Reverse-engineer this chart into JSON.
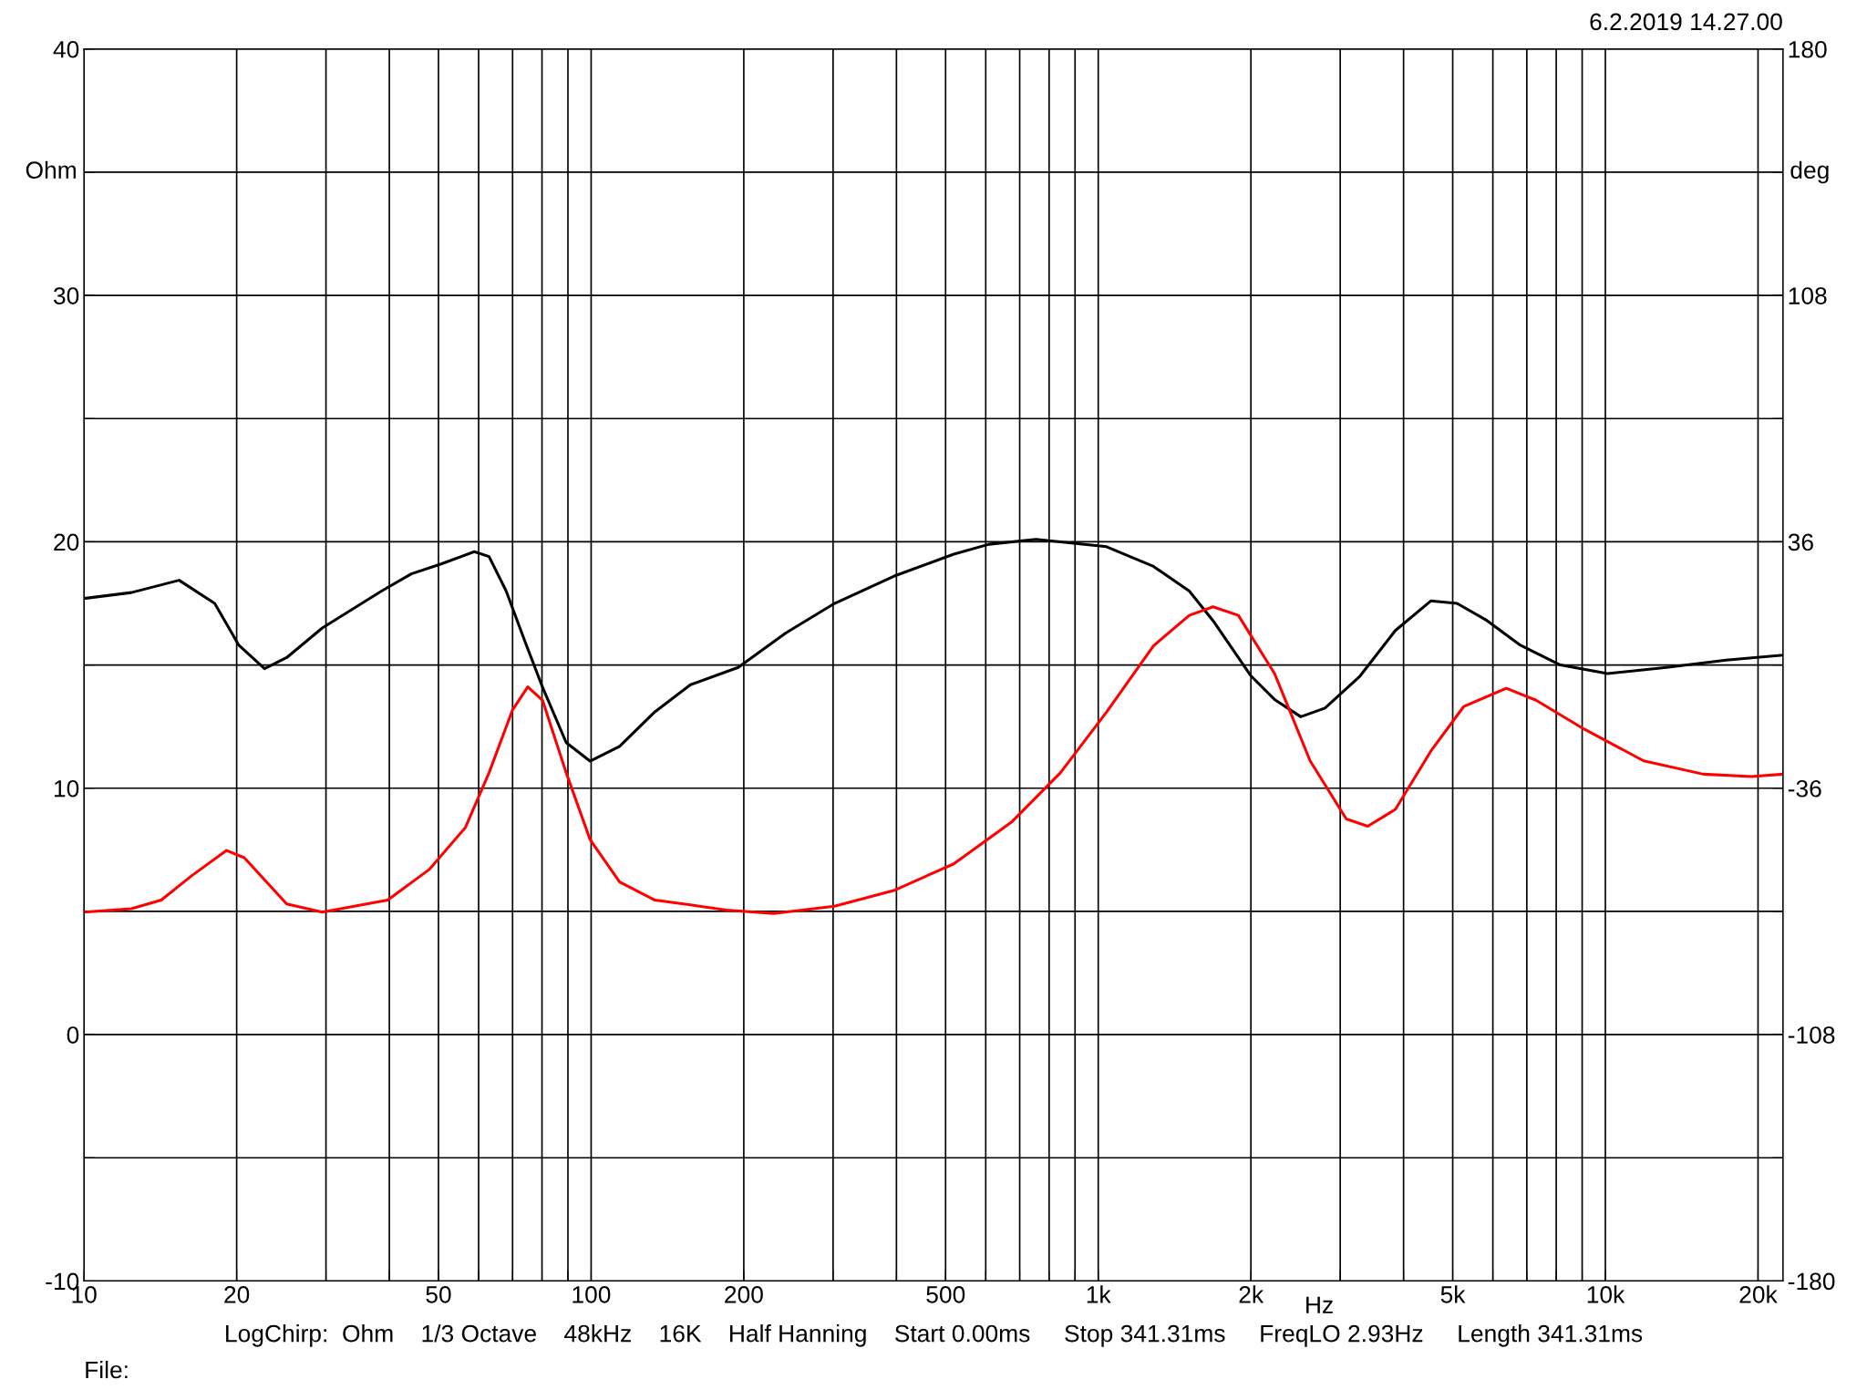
{
  "chart_data": {
    "type": "line",
    "xlabel": "Hz",
    "ylabel": "Ohm",
    "y2label": "deg",
    "log": "x",
    "grid": true,
    "marker": "none",
    "line_style": "solid",
    "xlim": [
      10,
      22400
    ],
    "xticks": [
      10,
      20,
      {
        "value": 30,
        "label": null
      },
      {
        "value": 40,
        "label": null
      },
      50,
      {
        "value": 60,
        "label": null
      },
      {
        "value": 70,
        "label": null
      },
      {
        "value": 80,
        "label": null
      },
      {
        "value": 90,
        "label": null
      },
      100,
      200,
      {
        "value": 300,
        "label": null
      },
      {
        "value": 400,
        "label": null
      },
      500,
      {
        "value": 600,
        "label": null
      },
      {
        "value": 700,
        "label": null
      },
      {
        "value": 800,
        "label": null
      },
      {
        "value": 900,
        "label": null
      },
      {
        "value": 1000,
        "label": "1k"
      },
      {
        "value": 2000,
        "label": "2k"
      },
      {
        "value": 3000,
        "label": null
      },
      {
        "value": 4000,
        "label": null
      },
      {
        "value": 5000,
        "label": "5k"
      },
      {
        "value": 6000,
        "label": null
      },
      {
        "value": 7000,
        "label": null
      },
      {
        "value": 8000,
        "label": null
      },
      {
        "value": 9000,
        "label": null
      },
      {
        "value": 10000,
        "label": "10k"
      },
      {
        "value": 20000,
        "label": "20k"
      }
    ],
    "ylim": [
      -10,
      40
    ],
    "yticks": [
      -10,
      {
        "value": -5,
        "label": null
      },
      0,
      {
        "value": 5,
        "label": null
      },
      10,
      {
        "value": 15,
        "label": null
      },
      20,
      {
        "value": 25,
        "label": null
      },
      30,
      {
        "value": 35,
        "label": null
      },
      40
    ],
    "y2lim": [
      -180,
      180
    ],
    "y2ticks": [
      -180,
      {
        "value": -144,
        "label": null
      },
      -108,
      {
        "value": -72,
        "label": null
      },
      -36,
      {
        "value": 0,
        "label": null
      },
      36,
      {
        "value": 72,
        "label": null
      },
      108,
      {
        "value": 144,
        "label": null
      },
      180
    ],
    "annotations": [
      "6.2.2019 14.27.00",
      "LogChirp:  Ohm    1/3 Octave    48kHz    16K    Half Hanning    Start 0.00ms     Stop 341.31ms     FreqLO 2.93Hz     Length 341.31ms",
      "File:"
    ],
    "series": [
      {
        "color": "#000000",
        "x": [
          10,
          12.4,
          15.4,
          18.1,
          20.2,
          22.7,
          25.1,
          29.5,
          38.6,
          44.2,
          50.6,
          58.8,
          62.9,
          68.0,
          73.9,
          80.2,
          89.3,
          99.5,
          113.8,
          133.6,
          157,
          195,
          242,
          302,
          395,
          519,
          609,
          754,
          842,
          1038,
          1285,
          1512,
          1684,
          2002,
          2227,
          2508,
          2800,
          3282,
          3854,
          4526,
          5100,
          5845,
          6800,
          8150,
          10100,
          13200,
          17300,
          22400
        ],
        "values": [
          17.7,
          17.94,
          18.44,
          17.5,
          15.8,
          14.85,
          15.3,
          16.5,
          18.0,
          18.7,
          19.1,
          19.6,
          19.4,
          18.0,
          16.0,
          14.1,
          11.85,
          11.1,
          11.7,
          13.1,
          14.2,
          14.9,
          16.3,
          17.5,
          18.6,
          19.5,
          19.9,
          20.1,
          20.0,
          19.8,
          19.0,
          18.0,
          16.8,
          14.55,
          13.6,
          12.9,
          13.25,
          14.55,
          16.4,
          17.6,
          17.5,
          16.8,
          15.8,
          15.0,
          14.65,
          14.9,
          15.2,
          15.4
        ]
      },
      {
        "color": "#ff0000",
        "axis": "y2",
        "x": [
          10,
          12.4,
          14.2,
          16.3,
          19.1,
          20.7,
          25.1,
          29.5,
          39.7,
          47.9,
          56.5,
          62.9,
          70.0,
          75.0,
          80.2,
          89.3,
          99.5,
          113.8,
          133.6,
          157,
          185,
          229,
          302,
          395,
          519,
          677,
          842,
          1038,
          1285,
          1512,
          1684,
          1889,
          2227,
          2617,
          3084,
          3400,
          3854,
          4526,
          5259,
          6378,
          7300,
          9100,
          11900,
          15600,
          19400,
          22400
        ],
        "values": [
          -72.2,
          -71.2,
          -68.7,
          -61.6,
          -54.2,
          -56.3,
          -69.8,
          -72.2,
          -68.7,
          -59.8,
          -47.5,
          -31.5,
          -13.1,
          -6.4,
          -10.3,
          -31.5,
          -51.0,
          -63.4,
          -68.7,
          -70.1,
          -71.6,
          -72.6,
          -70.5,
          -65.9,
          -58.1,
          -45.7,
          -31.5,
          -13.8,
          5.6,
          14.5,
          17.0,
          14.5,
          -2.5,
          -28.0,
          -45.0,
          -47.1,
          -42.2,
          -25.2,
          -12.1,
          -6.8,
          -10.3,
          -18.8,
          -28.0,
          -31.9,
          -32.6,
          -31.9
        ]
      }
    ]
  }
}
